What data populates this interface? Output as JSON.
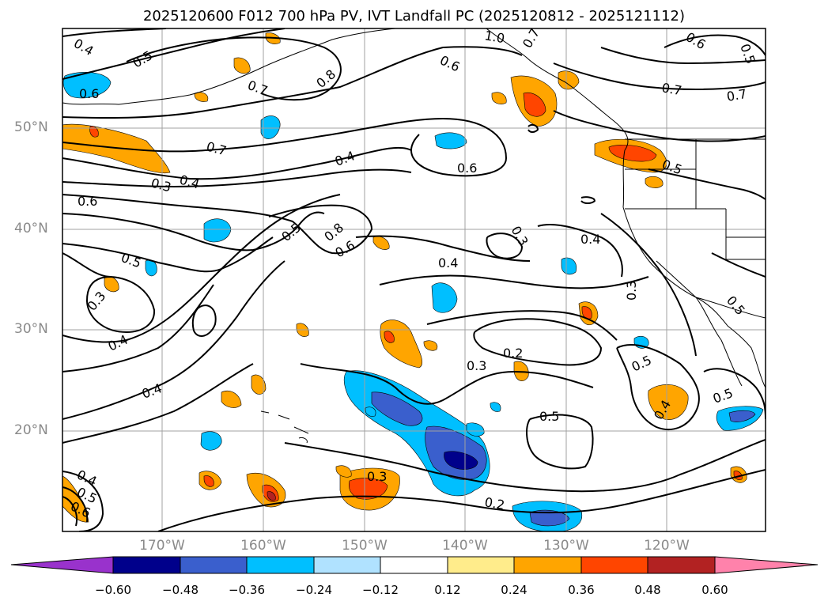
{
  "title": "2025120600 F012 700 hPa PV, IVT Landfall PC (2025120812 - 2025121112)",
  "lat_labels": [
    "50°N",
    "40°N",
    "30°N",
    "20°N"
  ],
  "lon_labels": [
    "170°W",
    "160°W",
    "150°W",
    "140°W",
    "130°W",
    "120°W"
  ],
  "colorbar": {
    "tick_labels": [
      "−0.60",
      "−0.48",
      "−0.36",
      "−0.24",
      "−0.12",
      "0.12",
      "0.24",
      "0.36",
      "0.48",
      "0.60"
    ],
    "colors": [
      "#9932cc",
      "#00008b",
      "#3a5fcd",
      "#00bfff",
      "#b0e2ff",
      "#ffffff",
      "#ffec8b",
      "#ffa500",
      "#ff4500",
      "#b22222",
      "#ff82ab"
    ]
  },
  "contour_labels": [
    "0.4",
    "0.5",
    "0.7",
    "0.8",
    "0.6",
    "1.0",
    "0.7",
    "0.6",
    "0.5",
    "0.6",
    "0.7",
    "0.7",
    "0.4",
    "0.3",
    "0.4",
    "0.6",
    "0.6",
    "0.5",
    "0.7",
    "0.8",
    "0.6",
    "0.5",
    "0.3",
    "0.4",
    "0.4",
    "0.5",
    "0.3",
    "0.3",
    "0.4",
    "0.2",
    "0.3",
    "0.5",
    "0.5",
    "0.4",
    "0.5",
    "0.4",
    "0.5",
    "0.3",
    "0.4",
    "0.5",
    "0.6",
    "0.2"
  ],
  "colors": {
    "contour": "#000000",
    "grid": "#a0a0a0",
    "coast": "#000000",
    "axis_label": "#8a8a8a"
  }
}
